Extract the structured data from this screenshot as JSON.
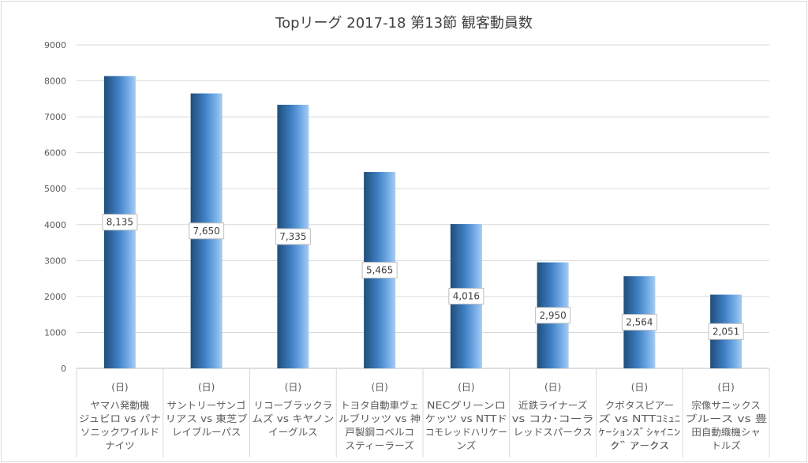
{
  "chart_data": {
    "type": "bar",
    "title": "Topリーグ 2017-18 第13節 観客動員数",
    "ylim": [
      0,
      9000
    ],
    "yticks": [
      0,
      1000,
      2000,
      3000,
      4000,
      5000,
      6000,
      7000,
      8000,
      9000
    ],
    "grid": true,
    "day_label": "(日)",
    "categories": [
      [
        "ヤマハ発動機",
        "ジュビロ vs パナ",
        "ソニックワイルド",
        "ナイツ"
      ],
      [
        "サントリーサンゴ",
        "リアス vs 東芝ブ",
        "レイブルーパス"
      ],
      [
        "リコーブラックラ",
        "ムズ vs キヤノン",
        "イーグルス"
      ],
      [
        "トヨタ自動車ヴェ",
        "ルブリッツ vs 神",
        "戸製鋼コベルコ",
        "スティーラーズ"
      ],
      [
        "NECグリーンロ",
        "ケッツ vs NTTド",
        "コモレッドハリケー",
        "ンズ"
      ],
      [
        "近鉄ライナーズ",
        "vs コカ･コーラ",
        "レッドスパークス"
      ],
      [
        "クボタスピアー",
        "ズ vs NTTｺﾐｭﾆ",
        "ｹｰｼｮﾝｽﾞｼｬｲﾆﾝ",
        "ｸﾞｱｰｸｽ"
      ],
      [
        "宗像サニックス",
        "ブルース vs 豊",
        "田自動織機シャ",
        "トルズ"
      ]
    ],
    "values": [
      8135,
      7650,
      7335,
      5465,
      4016,
      2950,
      2564,
      2051
    ],
    "data_labels": [
      "8,135",
      "7,650",
      "7,335",
      "5,465",
      "4,016",
      "2,950",
      "2,564",
      "2,051"
    ],
    "colors": {
      "bar_dark": "#1f4e79",
      "bar_mid": "#4a8ad0",
      "bar_light": "#a8ccf0",
      "grid": "#d9d9d9",
      "text": "#595959"
    }
  }
}
